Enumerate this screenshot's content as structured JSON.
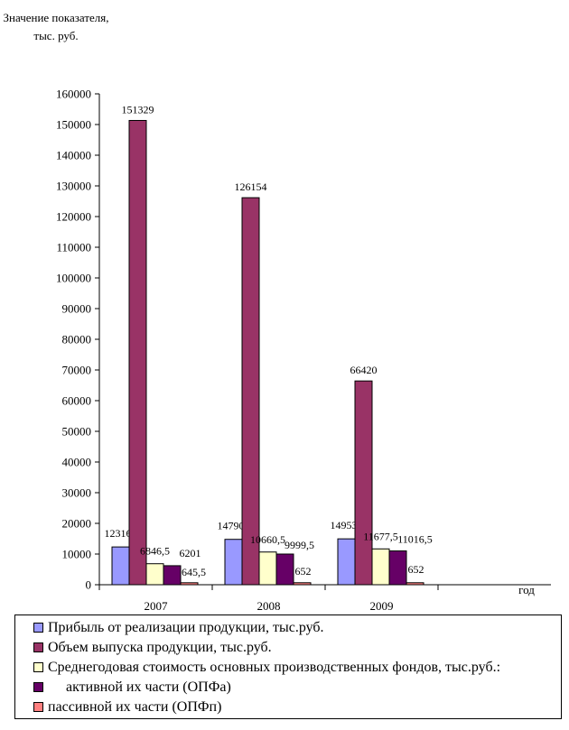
{
  "chart_data": {
    "type": "bar",
    "ylabel": "Значение показателя, тыс. руб.",
    "xlabel": "год",
    "categories": [
      "2007",
      "2008",
      "2009"
    ],
    "ylim": [
      0,
      160000
    ],
    "yticks": [
      "0",
      "10000",
      "20000",
      "30000",
      "40000",
      "50000",
      "60000",
      "70000",
      "80000",
      "90000",
      "100000",
      "110000",
      "120000",
      "130000",
      "140000",
      "150000",
      "160000"
    ],
    "grid": false,
    "legend_position": "bottom",
    "series": [
      {
        "name": "Прибыль от реализации продукции, тыс.руб.",
        "color": "#9999FF",
        "values": [
          12316,
          14790,
          14953
        ],
        "labels": [
          "12316",
          "14790",
          "14953"
        ]
      },
      {
        "name": "Объем выпуска продукции, тыс.руб.",
        "color": "#993366",
        "values": [
          151329,
          126154,
          66420
        ],
        "labels": [
          "151329",
          "126154",
          "66420"
        ]
      },
      {
        "name": "Среднегодовая стоимость основных производственных фондов, тыс.руб.:",
        "color": "#FFFFCC",
        "values": [
          6846.5,
          10660.5,
          11677.5
        ],
        "labels": [
          "6846,5",
          "10660,5",
          "11677,5"
        ]
      },
      {
        "name": "     активной их части (ОПФа)",
        "color": "#660066",
        "values": [
          6201,
          9999.5,
          11016.5
        ],
        "labels": [
          "6201",
          "9999,5",
          "11016,5"
        ]
      },
      {
        "name": "пассивной их части (ОПФп)",
        "color": "#FF8080",
        "values": [
          645.5,
          652,
          652
        ],
        "labels": [
          "645,5",
          "652",
          "652"
        ]
      }
    ]
  }
}
